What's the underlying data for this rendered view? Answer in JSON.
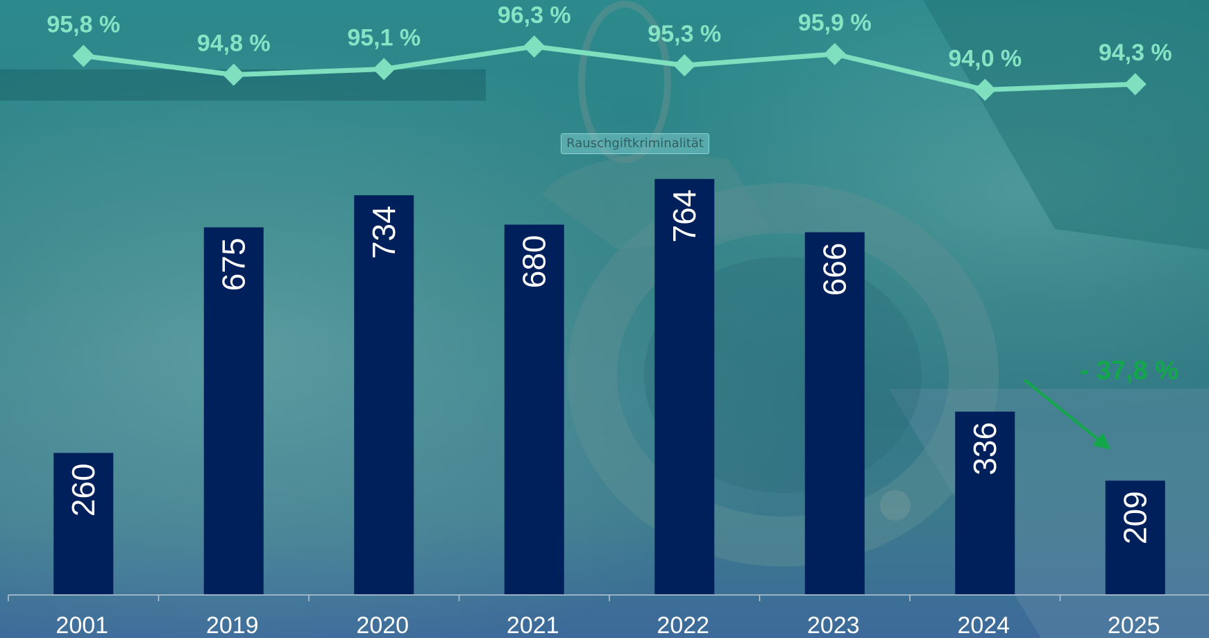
{
  "chart_data": {
    "type": "bar",
    "categories": [
      "2001",
      "2019",
      "2020",
      "2021",
      "2022",
      "2023",
      "2024",
      "2025"
    ],
    "series": [
      {
        "type": "bar",
        "values": [
          260,
          675,
          734,
          680,
          764,
          666,
          336,
          209
        ],
        "labels": [
          "260",
          "675",
          "734",
          "680",
          "764",
          "666",
          "336",
          "209"
        ],
        "color": "#00205b"
      },
      {
        "type": "line",
        "values": [
          95.8,
          94.8,
          95.1,
          96.3,
          95.3,
          95.9,
          94.0,
          94.3
        ],
        "labels": [
          "95,8 %",
          "94,8 %",
          "95,1 %",
          "96,3 %",
          "95,3 %",
          "95,9 %",
          "94,0 %",
          "94,3 %"
        ],
        "color": "#7ee0bf"
      }
    ],
    "annotation": {
      "text": "- 37,8 %",
      "color": "#12a84a",
      "from": "2024",
      "to": "2025"
    },
    "legend": "none",
    "grid": false
  },
  "tooltip": {
    "text": "Rauschgiftkriminalität"
  }
}
